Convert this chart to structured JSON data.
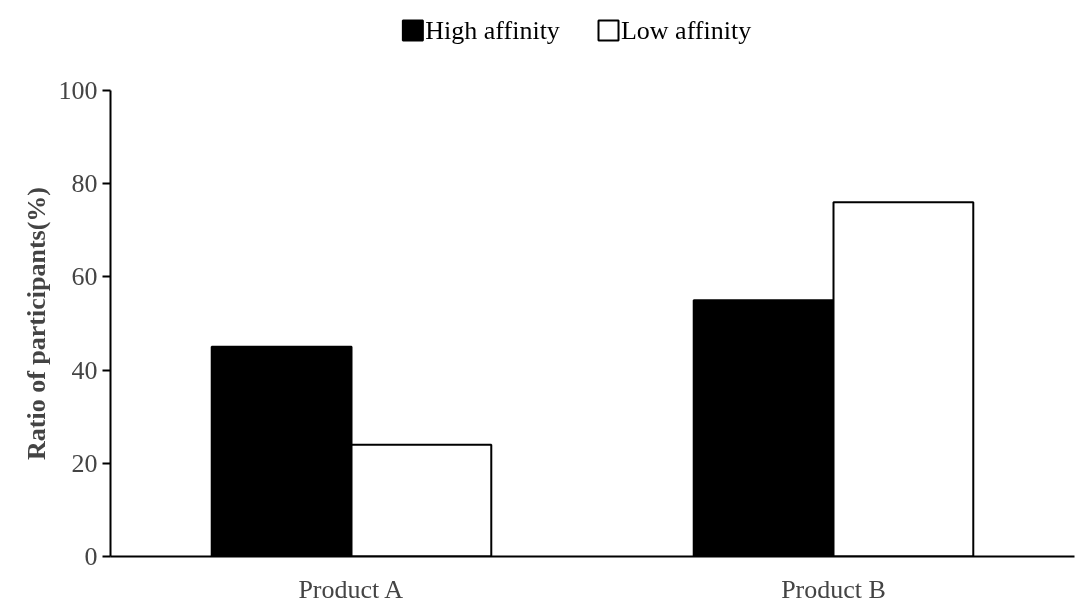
{
  "chart_data": {
    "type": "bar",
    "ylabel": "Ratio of participants(%)",
    "categories": [
      "Product A",
      "Product B"
    ],
    "series": [
      {
        "name": "High affinity",
        "color": "#000000",
        "values": [
          45,
          55
        ]
      },
      {
        "name": "Low affinity",
        "color": "#ffffff",
        "values": [
          24,
          76
        ]
      }
    ],
    "ylim": [
      0,
      100
    ],
    "yticks": [
      0,
      20,
      40,
      60,
      80,
      100
    ],
    "grid": false,
    "legend": "top"
  }
}
